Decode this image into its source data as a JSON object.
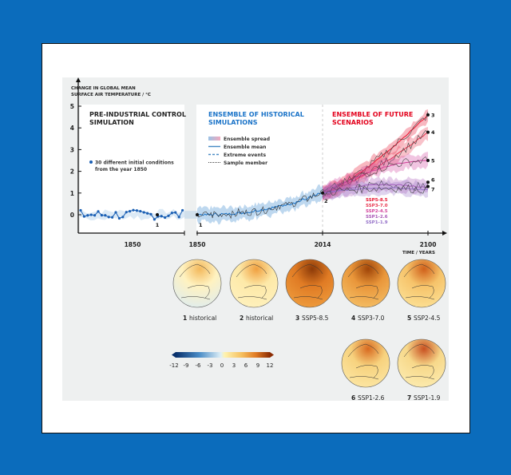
{
  "axis": {
    "ylabel_line1": "CHANGE IN GLOBAL MEAN",
    "ylabel_line2": "SURFACE AIR TEMPERATURE / °C",
    "xlabel": "TIME / YEARS"
  },
  "panels": {
    "control": {
      "title_line1": "PRE-INDUSTRIAL CONTROL",
      "title_line2": "SIMULATION",
      "note_line1": "30 different initial conditions",
      "note_line2": "from the year 1850",
      "x_label": "1850"
    },
    "historical": {
      "title_line1": "ENSEMBLE OF HISTORICAL",
      "title_line2": "SIMULATIONS",
      "title_color": "#1a73c8"
    },
    "future": {
      "title_line1": "ENSEMBLE OF FUTURE",
      "title_line2": "SCENARIOS",
      "title_color": "#e3001b"
    }
  },
  "legend": [
    "Ensemble spread",
    "Ensemble mean",
    "Extreme events",
    "Sample member"
  ],
  "scenario_labels": [
    {
      "name": "SSP5-8.5",
      "color": "#e8112d"
    },
    {
      "name": "SSP3-7.0",
      "color": "#e8364f"
    },
    {
      "name": "SSP2-4.5",
      "color": "#d2409a"
    },
    {
      "name": "SSP1-2.6",
      "color": "#a855b5"
    },
    {
      "name": "SSP1-1.9",
      "color": "#9470c8"
    }
  ],
  "chart_data": {
    "type": "line",
    "xlabel": "TIME / YEARS",
    "ylabel": "CHANGE IN GLOBAL MEAN SURFACE AIR TEMPERATURE / °C",
    "yticks": [
      "0",
      "1",
      "2",
      "3",
      "4",
      "5"
    ],
    "ylim": [
      -0.6,
      5
    ],
    "xticks": [
      "1850",
      "2014",
      "2100"
    ],
    "historical_mean": {
      "start_year": 1850,
      "end_year": 2014,
      "start": 0.0,
      "end": 1.0
    },
    "series": [
      {
        "name": "SSP5-8.5",
        "end_value": 4.6,
        "marker": "3"
      },
      {
        "name": "SSP3-7.0",
        "end_value": 3.8,
        "marker": "4"
      },
      {
        "name": "SSP2-4.5",
        "end_value": 2.5,
        "marker": "5"
      },
      {
        "name": "SSP1-2.6",
        "end_value": 1.5,
        "marker": "6"
      },
      {
        "name": "SSP1-1.9",
        "end_value": 1.3,
        "marker": "7"
      }
    ],
    "markers": [
      {
        "label": "1",
        "year": 1850,
        "value": 0.0
      },
      {
        "label": "2",
        "year": 2014,
        "value": 1.0
      }
    ]
  },
  "maps": [
    {
      "num": "1",
      "label": "historical"
    },
    {
      "num": "2",
      "label": "historical"
    },
    {
      "num": "3",
      "label": "SSP5-8.5"
    },
    {
      "num": "4",
      "label": "SSP3-7.0"
    },
    {
      "num": "5",
      "label": "SSP2-4.5"
    },
    {
      "num": "6",
      "label": "SSP1-2.6"
    },
    {
      "num": "7",
      "label": "SSP1-1.9"
    }
  ],
  "colorbar": {
    "ticks": [
      "-12",
      "-9",
      "-6",
      "-3",
      "0",
      "3",
      "6",
      "9",
      "12"
    ]
  }
}
